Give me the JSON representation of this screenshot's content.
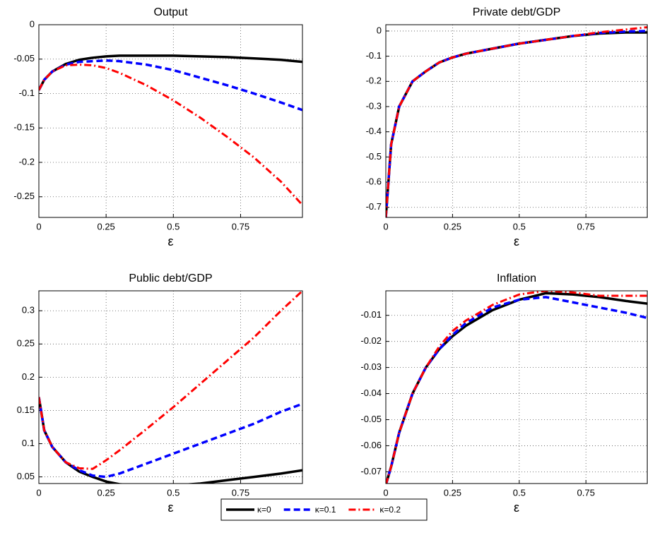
{
  "chart_data": [
    {
      "type": "line",
      "title": "Output",
      "xlabel": "ε",
      "xlim": [
        0,
        0.98
      ],
      "ylim": [
        -0.28,
        0
      ],
      "xticks": [
        0,
        0.25,
        0.5,
        0.75
      ],
      "yticks": [
        0,
        -0.05,
        -0.1,
        -0.15,
        -0.2,
        -0.25
      ],
      "grid": true,
      "x": [
        0,
        0.02,
        0.05,
        0.1,
        0.15,
        0.2,
        0.25,
        0.3,
        0.4,
        0.5,
        0.6,
        0.7,
        0.8,
        0.9,
        0.98
      ],
      "series": [
        {
          "name": "κ=0",
          "color": "#000000",
          "style": "solid",
          "values": [
            -0.095,
            -0.08,
            -0.068,
            -0.057,
            -0.051,
            -0.048,
            -0.046,
            -0.045,
            -0.045,
            -0.045,
            -0.046,
            -0.047,
            -0.049,
            -0.051,
            -0.054
          ]
        },
        {
          "name": "κ=0.1",
          "color": "#0000ff",
          "style": "dashed",
          "values": [
            -0.095,
            -0.08,
            -0.068,
            -0.058,
            -0.054,
            -0.053,
            -0.052,
            -0.053,
            -0.058,
            -0.066,
            -0.077,
            -0.088,
            -0.1,
            -0.113,
            -0.124
          ]
        },
        {
          "name": "κ=0.2",
          "color": "#ff0000",
          "style": "dashdot",
          "values": [
            -0.095,
            -0.08,
            -0.068,
            -0.059,
            -0.058,
            -0.059,
            -0.063,
            -0.07,
            -0.088,
            -0.11,
            -0.135,
            -0.163,
            -0.193,
            -0.228,
            -0.262
          ]
        }
      ]
    },
    {
      "type": "line",
      "title": "Private debt/GDP",
      "xlabel": "ε",
      "xlim": [
        0,
        0.98
      ],
      "ylim": [
        -0.74,
        0.025
      ],
      "xticks": [
        0,
        0.25,
        0.5,
        0.75
      ],
      "yticks": [
        0,
        -0.1,
        -0.2,
        -0.3,
        -0.4,
        -0.5,
        -0.6,
        -0.7
      ],
      "grid": true,
      "x": [
        0,
        0.02,
        0.05,
        0.1,
        0.15,
        0.2,
        0.25,
        0.3,
        0.4,
        0.5,
        0.6,
        0.7,
        0.8,
        0.9,
        0.98
      ],
      "series": [
        {
          "color": "#000000",
          "style": "solid",
          "values": [
            -0.74,
            -0.45,
            -0.3,
            -0.2,
            -0.16,
            -0.125,
            -0.105,
            -0.09,
            -0.07,
            -0.05,
            -0.035,
            -0.02,
            -0.01,
            -0.006,
            -0.006
          ]
        },
        {
          "color": "#0000ff",
          "style": "dashed",
          "values": [
            -0.74,
            -0.45,
            -0.3,
            -0.2,
            -0.16,
            -0.125,
            -0.105,
            -0.09,
            -0.07,
            -0.05,
            -0.035,
            -0.02,
            -0.008,
            -0.002,
            0
          ]
        },
        {
          "color": "#ff0000",
          "style": "dashdot",
          "values": [
            -0.74,
            -0.45,
            -0.3,
            -0.2,
            -0.16,
            -0.125,
            -0.105,
            -0.09,
            -0.07,
            -0.05,
            -0.035,
            -0.02,
            -0.005,
            0.006,
            0.015
          ]
        }
      ]
    },
    {
      "type": "line",
      "title": "Public debt/GDP",
      "xlabel": "ε",
      "xlim": [
        0,
        0.98
      ],
      "ylim": [
        0.04,
        0.33
      ],
      "xticks": [
        0,
        0.25,
        0.5,
        0.75
      ],
      "yticks": [
        0.05,
        0.1,
        0.15,
        0.2,
        0.25,
        0.3
      ],
      "grid": true,
      "x": [
        0,
        0.02,
        0.05,
        0.1,
        0.15,
        0.2,
        0.25,
        0.3,
        0.4,
        0.5,
        0.6,
        0.7,
        0.8,
        0.9,
        0.98
      ],
      "series": [
        {
          "color": "#000000",
          "style": "solid",
          "values": [
            0.17,
            0.12,
            0.095,
            0.072,
            0.058,
            0.05,
            0.043,
            0.039,
            0.036,
            0.037,
            0.04,
            0.045,
            0.05,
            0.055,
            0.06
          ]
        },
        {
          "color": "#0000ff",
          "style": "dashed",
          "values": [
            0.17,
            0.12,
            0.095,
            0.072,
            0.06,
            0.052,
            0.05,
            0.055,
            0.07,
            0.085,
            0.1,
            0.115,
            0.13,
            0.148,
            0.16
          ]
        },
        {
          "color": "#ff0000",
          "style": "dashdot",
          "values": [
            0.17,
            0.12,
            0.095,
            0.072,
            0.063,
            0.062,
            0.075,
            0.09,
            0.122,
            0.155,
            0.19,
            0.225,
            0.26,
            0.3,
            0.33
          ]
        }
      ]
    },
    {
      "type": "line",
      "title": "Inflation",
      "xlabel": "ε",
      "xlim": [
        0,
        0.98
      ],
      "ylim": [
        -0.0745,
        -0.0006
      ],
      "xticks": [
        0,
        0.25,
        0.5,
        0.75
      ],
      "yticks": [
        -0.01,
        -0.02,
        -0.03,
        -0.04,
        -0.05,
        -0.06,
        -0.07
      ],
      "grid": true,
      "x": [
        0,
        0.02,
        0.05,
        0.1,
        0.15,
        0.2,
        0.25,
        0.3,
        0.4,
        0.5,
        0.6,
        0.7,
        0.8,
        0.9,
        0.98
      ],
      "series": [
        {
          "color": "#000000",
          "style": "solid",
          "values": [
            -0.075,
            -0.068,
            -0.055,
            -0.04,
            -0.03,
            -0.023,
            -0.018,
            -0.014,
            -0.008,
            -0.004,
            -0.0015,
            -0.002,
            -0.003,
            -0.0045,
            -0.0055
          ]
        },
        {
          "color": "#0000ff",
          "style": "dashed",
          "values": [
            -0.075,
            -0.068,
            -0.055,
            -0.04,
            -0.03,
            -0.023,
            -0.0175,
            -0.013,
            -0.007,
            -0.004,
            -0.003,
            -0.005,
            -0.007,
            -0.009,
            -0.011
          ]
        },
        {
          "color": "#ff0000",
          "style": "dashdot",
          "values": [
            -0.075,
            -0.068,
            -0.055,
            -0.04,
            -0.03,
            -0.022,
            -0.016,
            -0.012,
            -0.006,
            -0.002,
            -0.0006,
            -0.0012,
            -0.0025,
            -0.0025,
            -0.0025
          ]
        }
      ]
    }
  ]
}
